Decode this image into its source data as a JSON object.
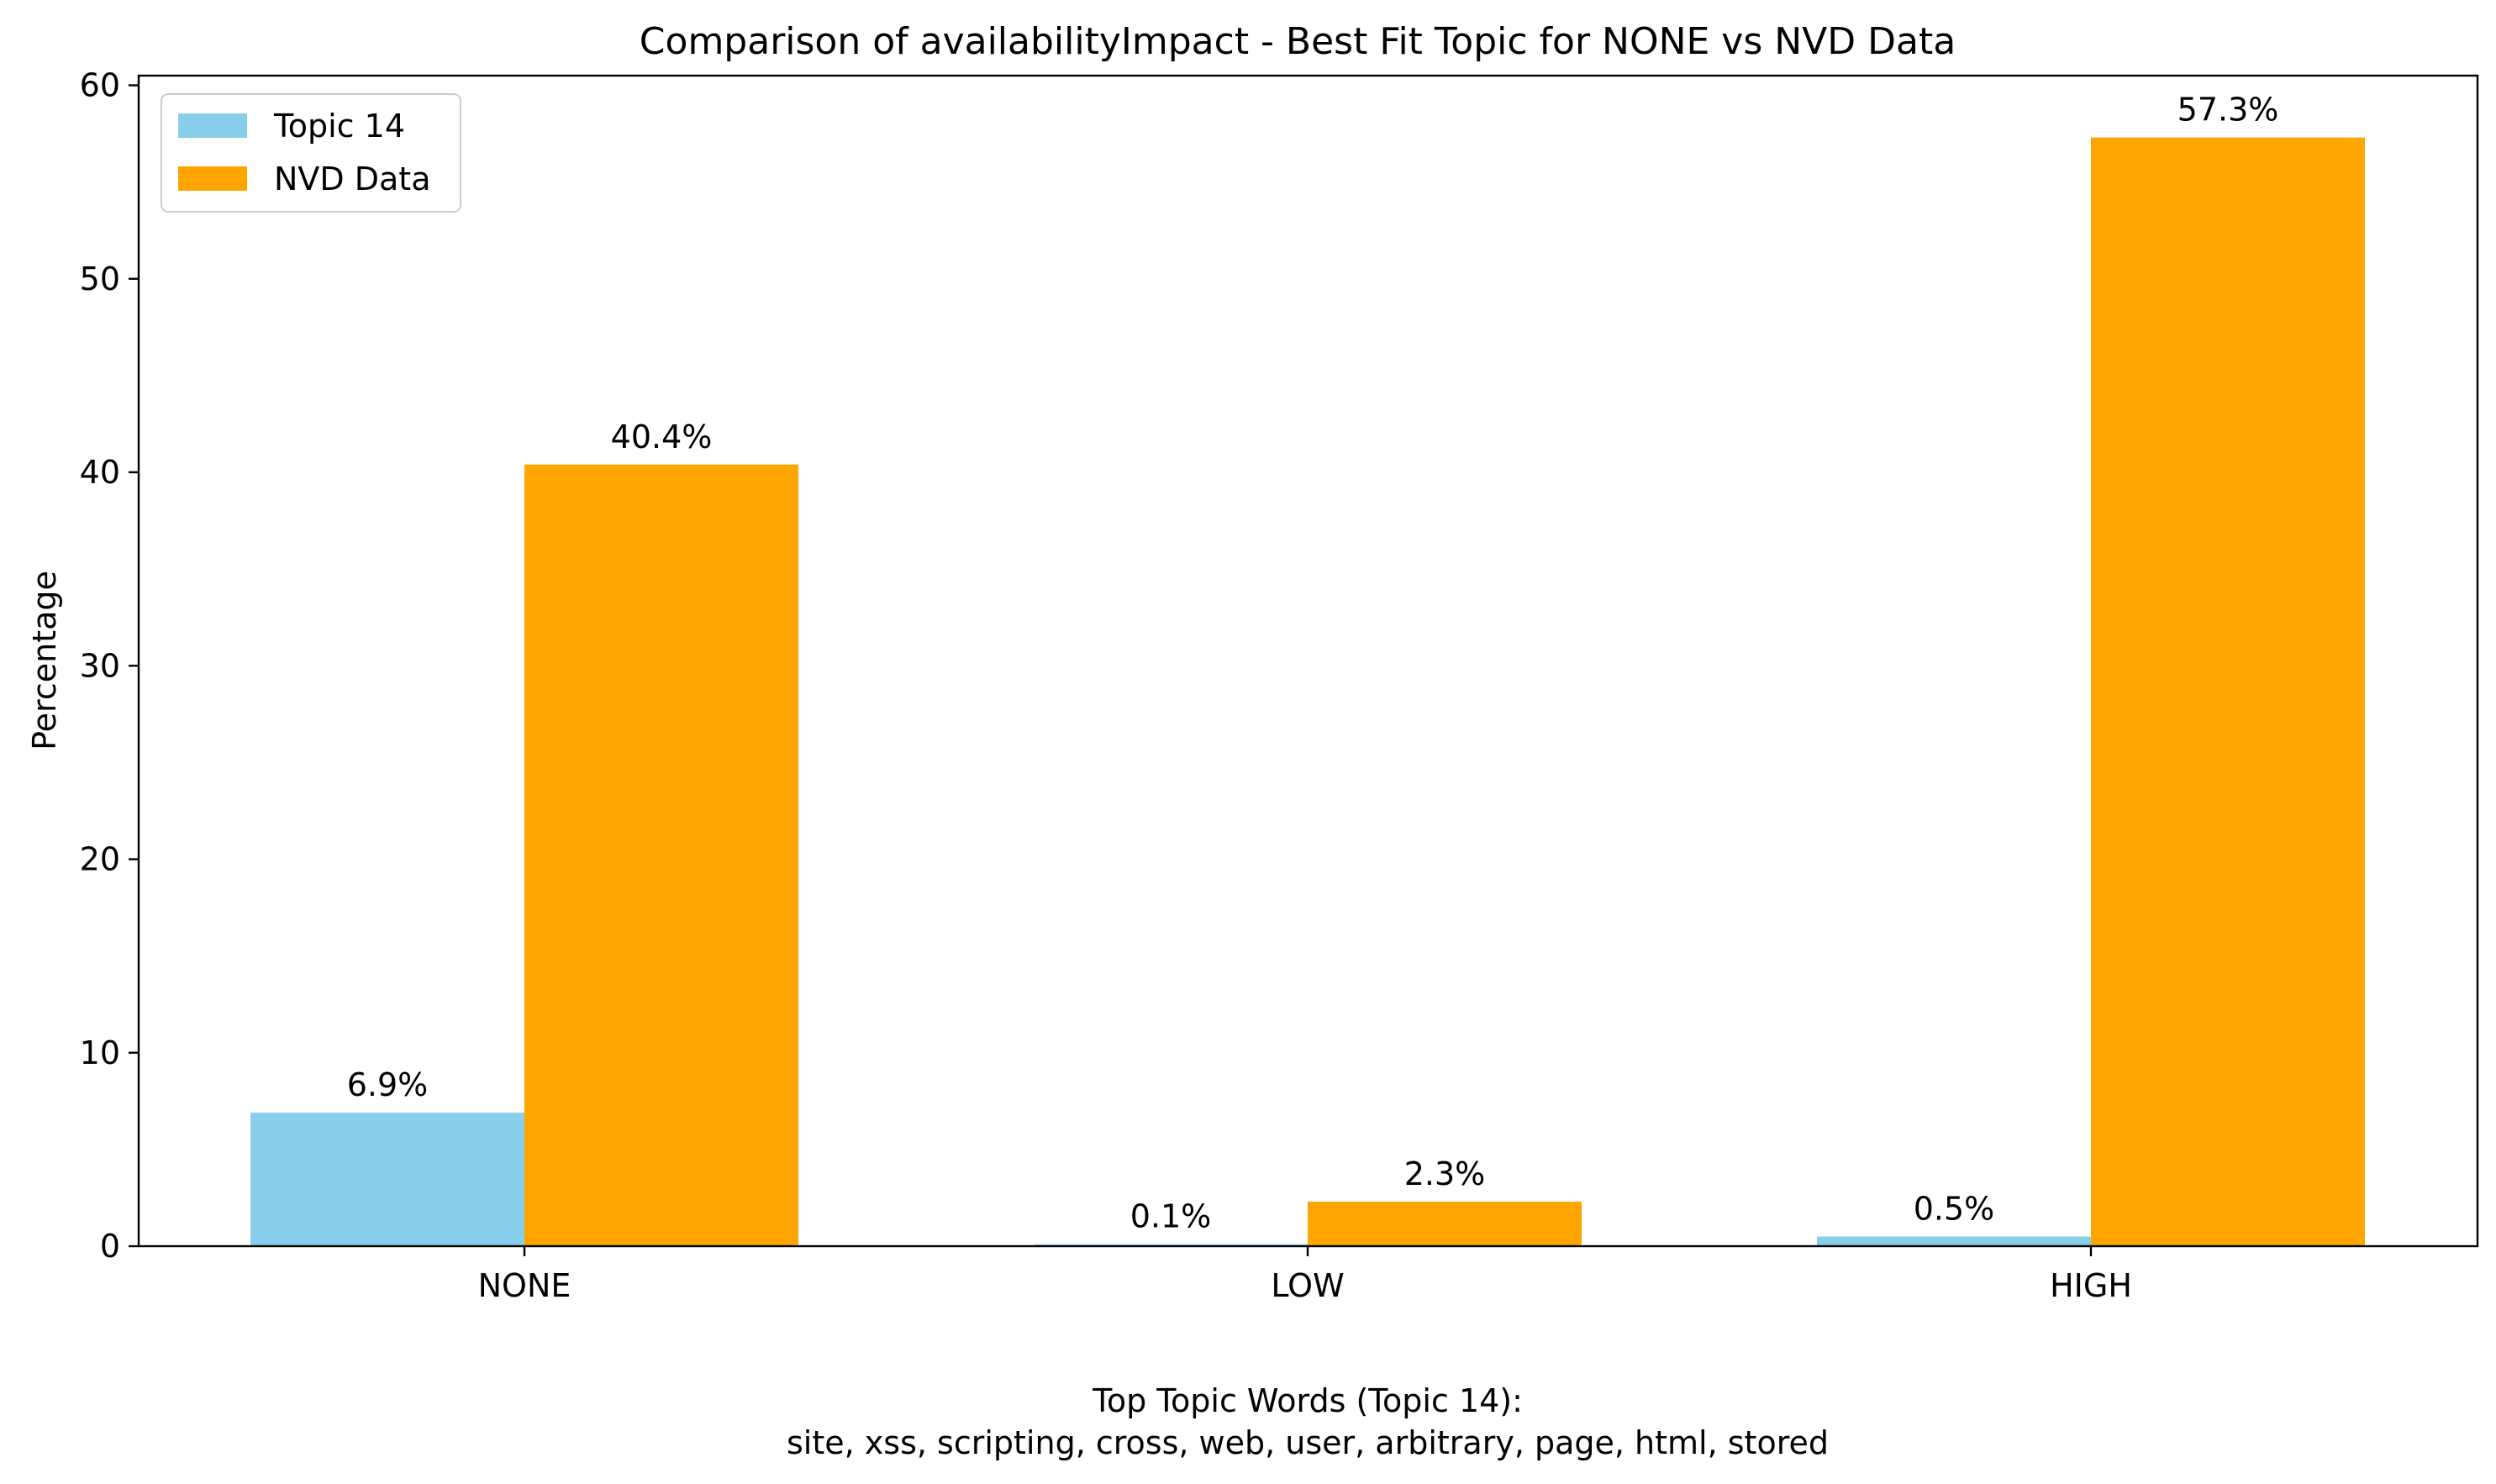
{
  "chart_data": {
    "type": "bar",
    "title": "Comparison of availabilityImpact - Best Fit Topic for NONE vs NVD Data",
    "xlabel": "",
    "ylabel": "Percentage",
    "categories": [
      "NONE",
      "LOW",
      "HIGH"
    ],
    "series": [
      {
        "name": "Topic 14",
        "color": "#87ceeb",
        "values": [
          6.9,
          0.1,
          0.5
        ],
        "labels": [
          "6.9%",
          "0.1%",
          "0.5%"
        ]
      },
      {
        "name": "NVD Data",
        "color": "#ffa500",
        "values": [
          40.4,
          2.3,
          57.3
        ],
        "labels": [
          "40.4%",
          "2.3%",
          "57.3%"
        ]
      }
    ],
    "ylim": [
      0,
      60.5
    ],
    "yticks": [
      0,
      10,
      20,
      30,
      40,
      50,
      60
    ],
    "ytick_labels": [
      "0",
      "10",
      "20",
      "30",
      "40",
      "50",
      "60"
    ],
    "grid": false,
    "legend_position": "top-left",
    "caption_lines": [
      "Top Topic Words (Topic 14):",
      "site,  xss,  scripting,  cross,  web,  user,  arbitrary,  page,  html,  stored"
    ]
  }
}
